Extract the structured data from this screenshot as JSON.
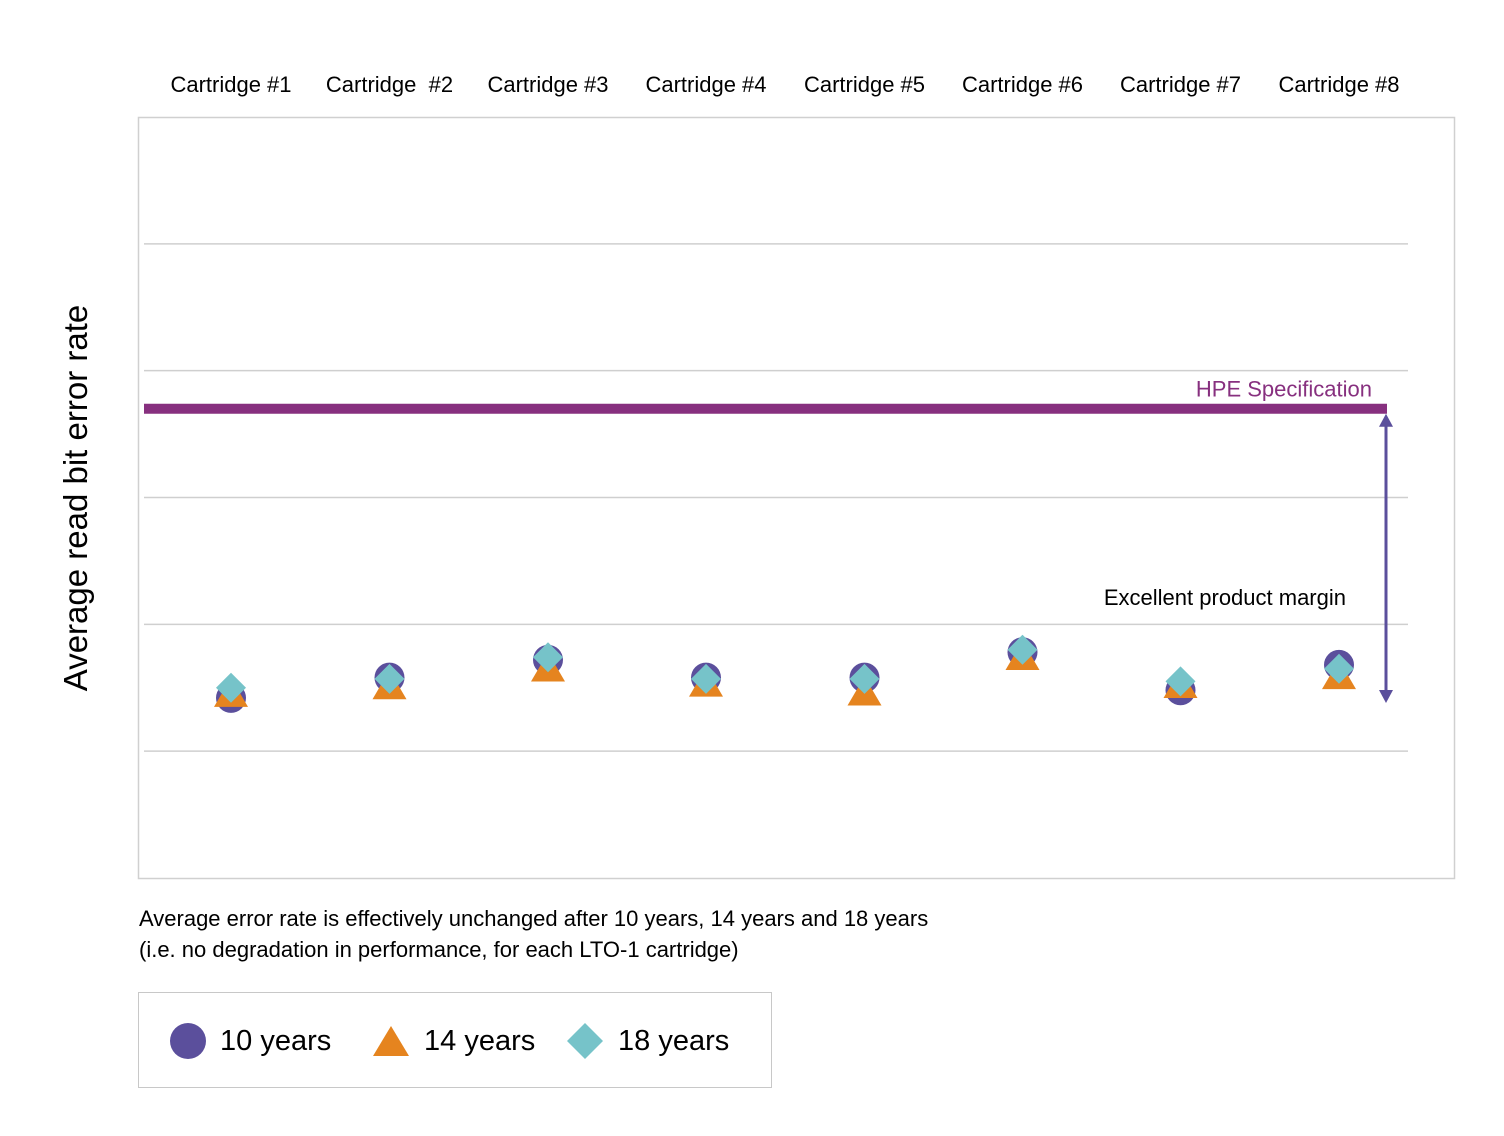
{
  "colors": {
    "ten_years": "#5b4f9c",
    "fourteen_years": "#e5841f",
    "eighteen_years": "#76c3c9",
    "spec": "#87307f",
    "margin_arrow": "#5b4f9c",
    "grid": "#cfcfcf",
    "frame": "#d0d0d0"
  },
  "chart_data": {
    "type": "scatter",
    "categories": [
      "Cartridge #1",
      "Cartridge  #2",
      "Cartridge #3",
      "Cartridge #4",
      "Cartridge #5",
      "Cartridge #6",
      "Cartridge #7",
      "Cartridge #8"
    ],
    "ylabel": "Average read bit error rate",
    "ylim": [
      0,
      6
    ],
    "grid": true,
    "legend_position": "bottom-left",
    "series": [
      {
        "name": "10 years",
        "marker": "circle",
        "values": [
          1.42,
          1.58,
          1.72,
          1.58,
          1.58,
          1.78,
          1.48,
          1.68
        ]
      },
      {
        "name": "14 years",
        "marker": "triangle",
        "values": [
          1.46,
          1.52,
          1.66,
          1.54,
          1.47,
          1.75,
          1.53,
          1.6
        ]
      },
      {
        "name": "18 years",
        "marker": "diamond",
        "values": [
          1.5,
          1.57,
          1.74,
          1.57,
          1.57,
          1.8,
          1.55,
          1.65
        ]
      }
    ],
    "reference_line": {
      "label": "HPE Specification",
      "value": 3.7
    },
    "annotation": {
      "label": "Excellent product margin"
    }
  },
  "caption": {
    "line1": "Average error rate is effectively unchanged after 10 years, 14 years and 18 years",
    "line2": "(i.e. no degradation in performance, for each LTO-1 cartridge)"
  },
  "legend": {
    "items": [
      {
        "label": "10 years",
        "icon": "circle-marker-icon"
      },
      {
        "label": "14 years",
        "icon": "triangle-marker-icon"
      },
      {
        "label": "18 years",
        "icon": "diamond-marker-icon"
      }
    ]
  }
}
